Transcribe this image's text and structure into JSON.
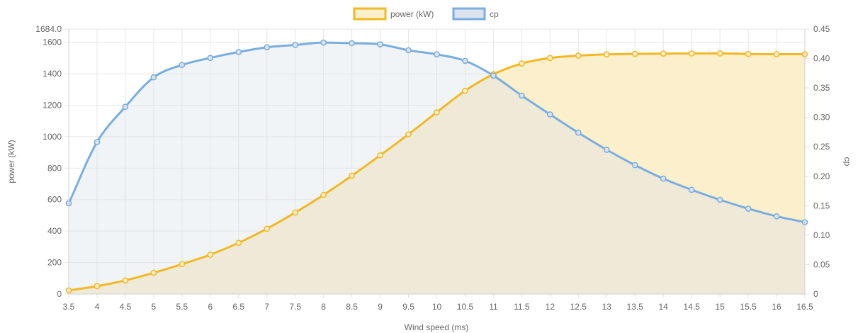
{
  "chart_data": {
    "type": "line",
    "xlabel": "Wind speed (ms)",
    "y_left_label": "power (kW)",
    "y_right_label": "cp",
    "x": [
      3.5,
      4,
      4.5,
      5,
      5.5,
      6,
      6.5,
      7,
      7.5,
      8,
      8.5,
      9,
      9.5,
      10,
      10.5,
      11,
      11.5,
      12,
      12.5,
      13,
      13.5,
      14,
      14.5,
      15,
      15.5,
      16,
      16.5
    ],
    "x_tick_labels": [
      "3.5",
      "4",
      "4.5",
      "5",
      "5.5",
      "6",
      "6.5",
      "7",
      "7.5",
      "8",
      "8.5",
      "9",
      "9.5",
      "10",
      "10.5",
      "11",
      "11.5",
      "12",
      "12.5",
      "13",
      "13.5",
      "14",
      "14.5",
      "15",
      "15.5",
      "16",
      "16.5"
    ],
    "y_left_range": [
      0,
      1684.0
    ],
    "y_left_ticks": [
      0,
      200,
      400,
      600,
      800,
      1000,
      1200,
      1400,
      1600
    ],
    "y_left_tick_labels": [
      "0",
      "200",
      "400",
      "600",
      "800",
      "1000",
      "1200",
      "1400",
      "1600"
    ],
    "y_left_max_label": "1684.0",
    "y_right_range": [
      0,
      0.45
    ],
    "y_right_ticks": [
      0,
      0.05,
      0.1,
      0.15,
      0.2,
      0.25,
      0.3,
      0.35,
      0.4,
      0.45
    ],
    "y_right_tick_labels": [
      "0",
      "0.05",
      "0.10",
      "0.15",
      "0.20",
      "0.25",
      "0.30",
      "0.35",
      "0.40",
      "0.45"
    ],
    "grid": true,
    "legend_position": "top-center",
    "series": [
      {
        "name": "power (kW)",
        "axis": "left",
        "fill": true,
        "color": "#f2b824",
        "fill_color": "#fcefcb",
        "values": [
          23,
          50,
          87,
          135,
          190,
          250,
          325,
          415,
          518,
          630,
          752,
          881,
          1015,
          1155,
          1292,
          1397,
          1465,
          1500,
          1515,
          1523,
          1526,
          1528,
          1529,
          1529,
          1526,
          1524,
          1524
        ]
      },
      {
        "name": "cp",
        "axis": "right",
        "fill": true,
        "color": "#79aee0",
        "fill_color": "#dce3ec",
        "values": [
          0.154,
          0.258,
          0.318,
          0.368,
          0.389,
          0.401,
          0.411,
          0.419,
          0.423,
          0.427,
          0.426,
          0.424,
          0.414,
          0.407,
          0.396,
          0.371,
          0.337,
          0.305,
          0.274,
          0.245,
          0.219,
          0.196,
          0.177,
          0.16,
          0.145,
          0.132,
          0.122
        ]
      }
    ]
  }
}
